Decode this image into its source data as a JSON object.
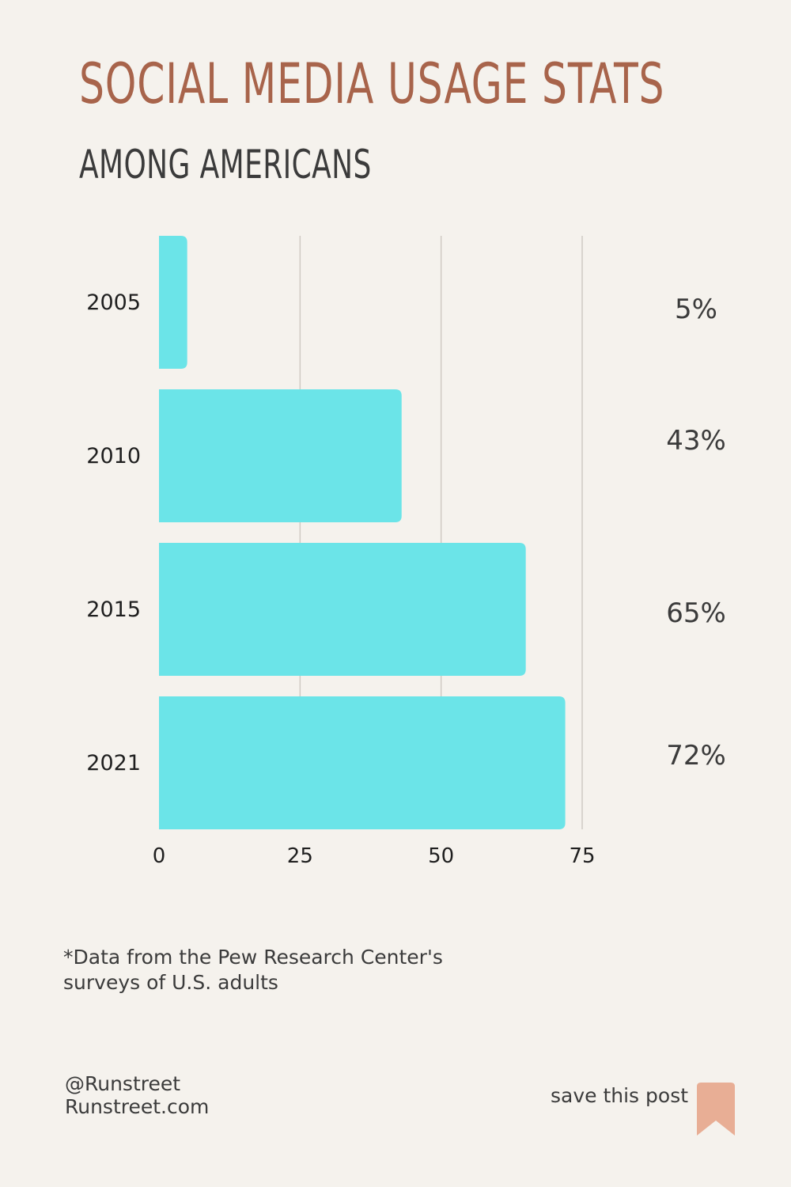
{
  "header": {
    "title": "SOCIAL MEDIA USAGE STATS",
    "subtitle": "AMONG AMERICANS"
  },
  "chart_data": {
    "type": "bar",
    "orientation": "horizontal",
    "categories": [
      "2005",
      "2010",
      "2015",
      "2021"
    ],
    "values": [
      5,
      43,
      65,
      72
    ],
    "value_labels": [
      "5%",
      "43%",
      "65%",
      "72%"
    ],
    "x_ticks": [
      "0",
      "25",
      "50",
      "75"
    ],
    "xlim": [
      0,
      75
    ],
    "grid": true,
    "colors": {
      "bar": "#6be4e8",
      "grid": "#cfcac3",
      "text": "#1f1f1f",
      "value_text": "#3b3b3b"
    }
  },
  "footer": {
    "note_line1": "*Data from the Pew Research Center's",
    "note_line2": "surveys of U.S. adults",
    "handle": "@Runstreet",
    "website": "Runstreet.com",
    "save_label": "save this post",
    "save_icon": "bookmark-icon",
    "save_icon_color": "#e8ae95"
  }
}
